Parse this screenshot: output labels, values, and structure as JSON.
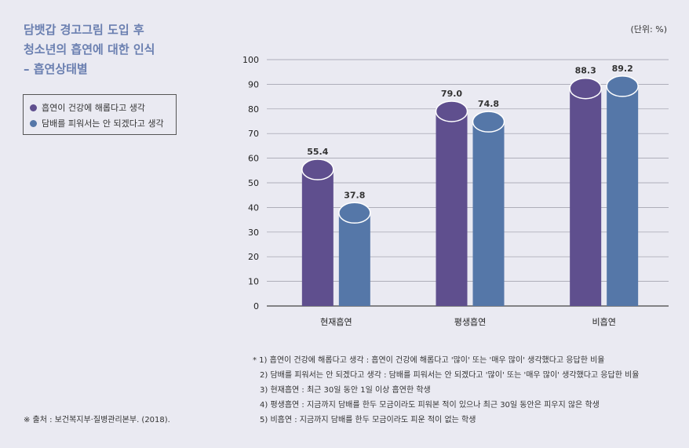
{
  "title_lines": [
    "담뱃갑 경고그림 도입 후",
    "청소년의 흡연에 대한 인식",
    "– 흡연상태별"
  ],
  "unit": "(단위: %)",
  "chart_data": {
    "type": "bar",
    "categories": [
      "현재흡연",
      "평생흡연",
      "비흡연"
    ],
    "series": [
      {
        "name": "흡연이 건강에 해롭다고 생각",
        "color": "#5f4f8e",
        "values": [
          55.4,
          79.0,
          88.3
        ]
      },
      {
        "name": "담배를 피워서는 안 되겠다고 생각",
        "color": "#5577a8",
        "values": [
          37.8,
          74.8,
          89.2
        ]
      }
    ],
    "data_labels": [
      [
        "55.4",
        "79.0",
        "88.3"
      ],
      [
        "37.8",
        "74.8",
        "89.2"
      ]
    ],
    "ylim": [
      0,
      100
    ],
    "yticks": [
      "0",
      "10",
      "20",
      "30",
      "40",
      "50",
      "60",
      "70",
      "80",
      "90",
      "100"
    ],
    "grid": true,
    "legend_position": "top-left"
  },
  "notes": [
    "* 1) 흡연이 건강에 해롭다고 생각 : 흡연이 건강에 해롭다고 '많이' 또는 '매우 많이' 생각했다고 응답한 비율",
    "2) 담배를 피워서는 안 되겠다고 생각 : 담배를 피워서는 안 되겠다고 '많이' 또는 '매우 많이' 생각했다고 응답한 비율",
    "3) 현재흡연 : 최근 30일 동안 1일 이상 흡연한 학생",
    "4) 평생흡연 : 지금까지 담배를 한두 모금이라도 피워본 적이 있으나 최근 30일 동안은 피우지 않은 학생",
    "5) 비흡연 : 지금까지 담배를 한두 모금이라도 피운 적이 없는 학생"
  ],
  "source": "※ 출처 : 보건복지부·질병관리본부. (2018)."
}
